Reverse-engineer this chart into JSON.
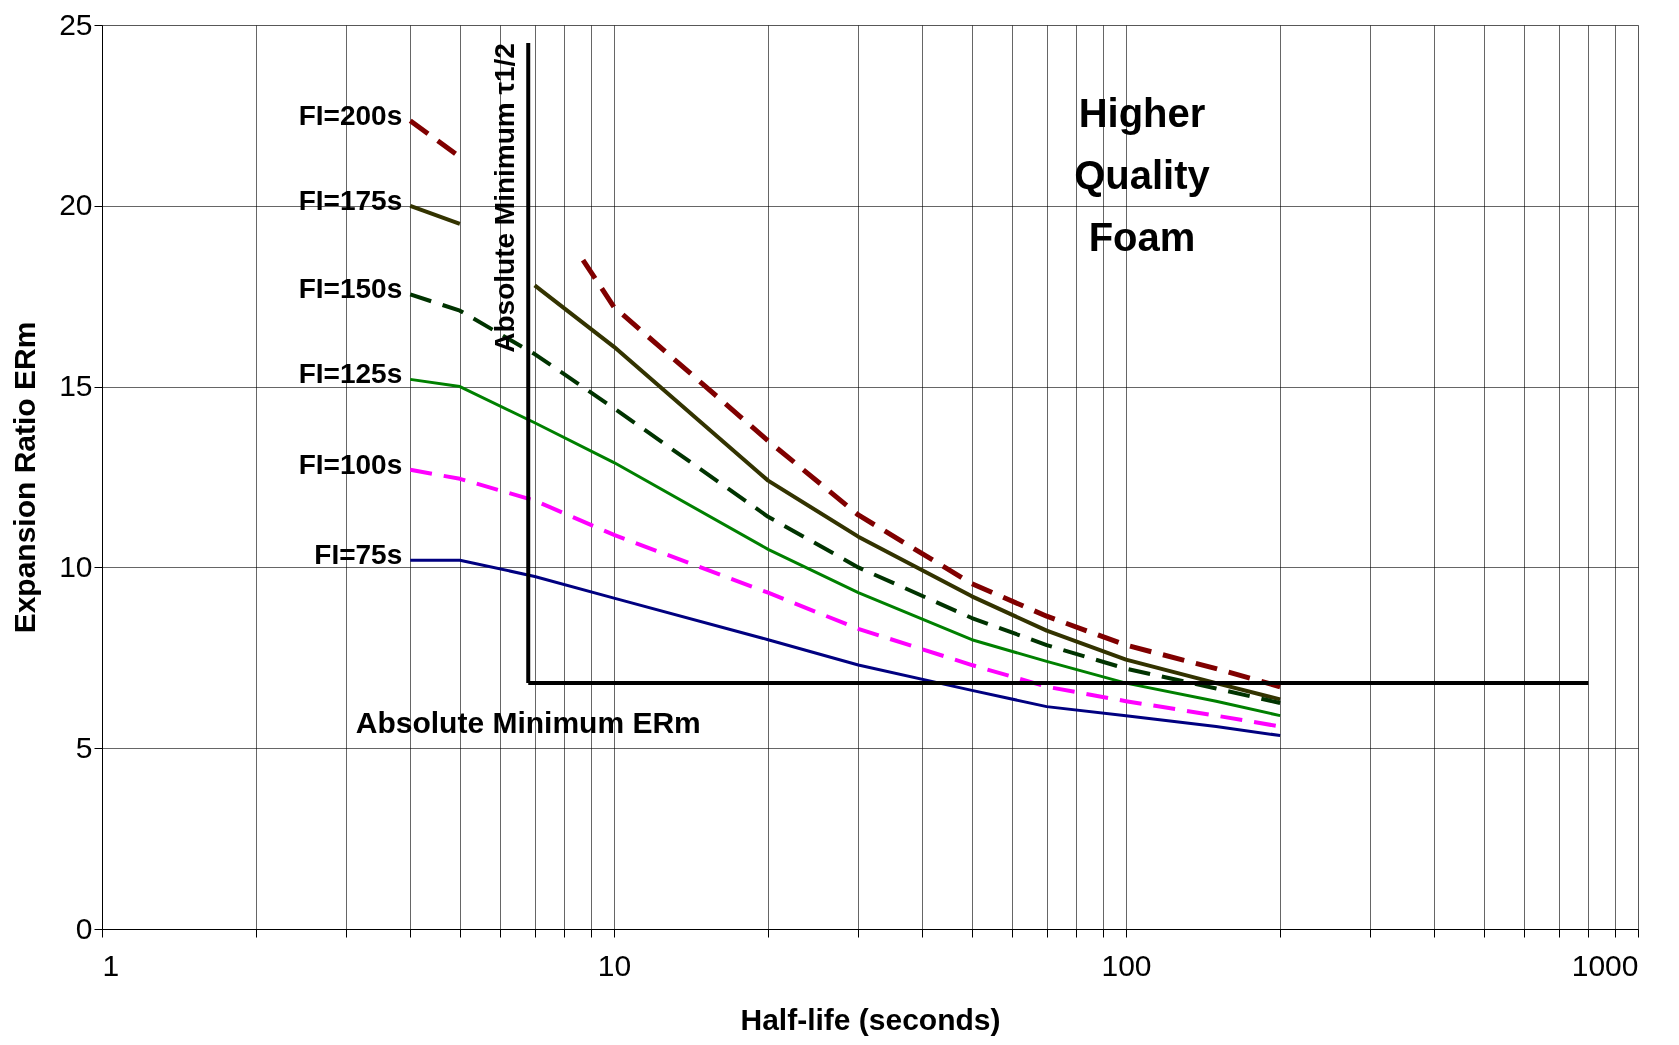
{
  "chart_data": {
    "type": "line",
    "xlabel": "Half-life (seconds)",
    "ylabel": "Expansion Ratio ERm",
    "log": "x",
    "xlim": [
      1,
      1000
    ],
    "ylim": [
      0,
      25
    ],
    "xticks": [
      1,
      {
        "value": 2,
        "label": null
      },
      {
        "value": 3,
        "label": null
      },
      {
        "value": 4,
        "label": null
      },
      {
        "value": 5,
        "label": null
      },
      {
        "value": 6,
        "label": null
      },
      {
        "value": 7,
        "label": null
      },
      {
        "value": 8,
        "label": null
      },
      {
        "value": 9,
        "label": null
      },
      10,
      {
        "value": 20,
        "label": null
      },
      {
        "value": 30,
        "label": null
      },
      {
        "value": 40,
        "label": null
      },
      {
        "value": 50,
        "label": null
      },
      {
        "value": 60,
        "label": null
      },
      {
        "value": 70,
        "label": null
      },
      {
        "value": 80,
        "label": null
      },
      {
        "value": 90,
        "label": null
      },
      100,
      {
        "value": 200,
        "label": null
      },
      {
        "value": 300,
        "label": null
      },
      {
        "value": 400,
        "label": null
      },
      {
        "value": 500,
        "label": null
      },
      {
        "value": 600,
        "label": null
      },
      {
        "value": 700,
        "label": null
      },
      {
        "value": 800,
        "label": null
      },
      {
        "value": 900,
        "label": null
      },
      1000
    ],
    "yticks": [
      0,
      5,
      10,
      15,
      20,
      25
    ],
    "grid": true,
    "legend": false,
    "marker": "none",
    "series": [
      {
        "name": "FI=200s",
        "color": "#800000",
        "line_style": "dashed",
        "x": [
          4,
          5,
          6,
          8.7,
          10,
          20,
          30,
          50,
          70,
          100,
          150,
          200
        ],
        "values": [
          22.35,
          21.35,
          null,
          18.5,
          17.2,
          13.5,
          11.45,
          9.55,
          8.65,
          7.85,
          7.2,
          6.7
        ]
      },
      {
        "name": "FI=175s",
        "color": "#333300",
        "line_style": "solid",
        "x": [
          4,
          5,
          6,
          7,
          10,
          20,
          30,
          50,
          70,
          100,
          150,
          200
        ],
        "values": [
          20.0,
          19.5,
          null,
          17.8,
          16.1,
          12.4,
          10.85,
          9.2,
          8.25,
          7.45,
          6.8,
          6.35
        ]
      },
      {
        "name": "FI=150s",
        "color": "#003300",
        "line_style": "dashed",
        "x": [
          4,
          5,
          7,
          10,
          20,
          30,
          50,
          70,
          100,
          150,
          200
        ],
        "values": [
          17.55,
          17.1,
          15.9,
          14.4,
          11.4,
          10.0,
          8.6,
          7.85,
          7.2,
          6.65,
          6.25
        ]
      },
      {
        "name": "FI=125s",
        "color": "#008000",
        "line_style": "solid",
        "x": [
          4,
          5,
          7,
          10,
          20,
          30,
          50,
          70,
          100,
          150,
          200
        ],
        "values": [
          15.2,
          15.0,
          14.0,
          12.9,
          10.5,
          9.3,
          8.0,
          7.4,
          6.8,
          6.3,
          5.9
        ]
      },
      {
        "name": "FI=100s",
        "color": "#ff00ff",
        "line_style": "dashed",
        "x": [
          4,
          5,
          7,
          10,
          20,
          30,
          50,
          70,
          100,
          150,
          200
        ],
        "values": [
          12.7,
          12.45,
          11.85,
          10.9,
          9.3,
          8.3,
          7.3,
          6.7,
          6.3,
          5.9,
          5.6
        ]
      },
      {
        "name": "FI=75s",
        "color": "#000080",
        "line_style": "solid",
        "x": [
          4,
          5,
          7,
          10,
          20,
          30,
          50,
          70,
          100,
          150,
          200
        ],
        "values": [
          10.2,
          10.2,
          9.75,
          9.15,
          8.0,
          7.3,
          6.6,
          6.15,
          5.9,
          5.6,
          5.35
        ]
      }
    ],
    "ref_lines": [
      {
        "axis": "x",
        "value": 6.8,
        "label": "Absolute Minimum τ1/2",
        "color": "#000000"
      },
      {
        "axis": "y",
        "value": 6.8,
        "label": "Absolute Minimum ERm",
        "color": "#000000"
      }
    ],
    "annotations": [
      "Higher Quality Foam"
    ]
  }
}
